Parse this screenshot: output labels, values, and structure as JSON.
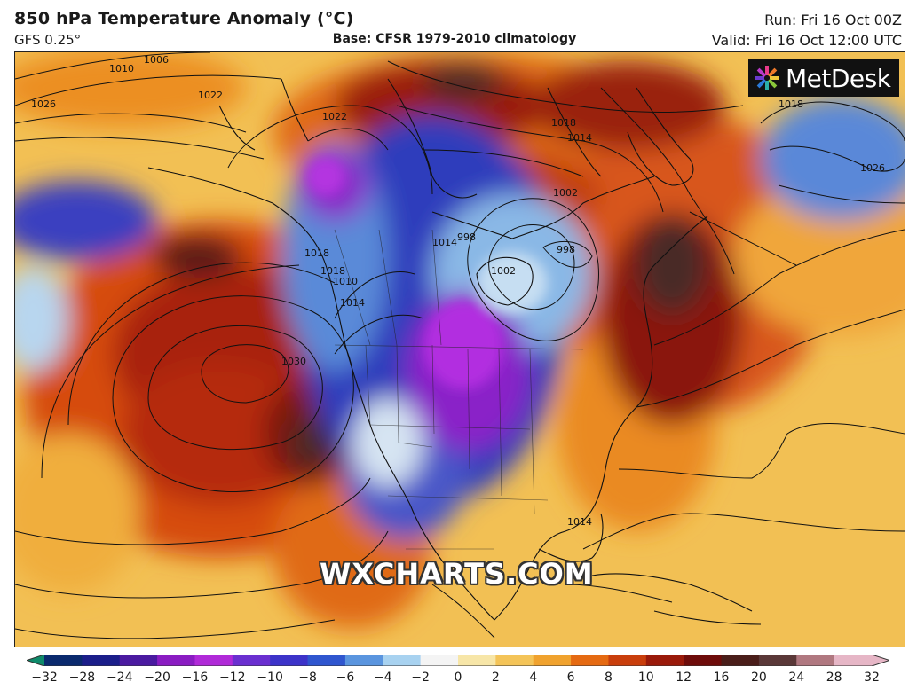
{
  "header": {
    "title": "850 hPa Temperature Anomaly (°C)",
    "model": "GFS 0.25°",
    "base": "Base: CFSR 1979-2010 climatology",
    "run": "Run: Fri 16 Oct 00Z",
    "valid": "Valid: Fri 16 Oct 12:00 UTC"
  },
  "logo": {
    "text": "MetDesk"
  },
  "watermark": {
    "text": "WXCHARTS.COM"
  },
  "colorbar": {
    "ticks": [
      "−32",
      "−28",
      "−24",
      "−20",
      "−16",
      "−12",
      "−10",
      "−8",
      "−6",
      "−4",
      "−2",
      "0",
      "2",
      "4",
      "6",
      "8",
      "10",
      "12",
      "16",
      "20",
      "24",
      "28",
      "32"
    ],
    "colors": [
      "#0f8a6a",
      "#0a2a6e",
      "#1b1e8a",
      "#4a1aa0",
      "#8a1cc2",
      "#b02ad8",
      "#6a2fd0",
      "#3c33c9",
      "#2f56cf",
      "#5a95df",
      "#a8d2f0",
      "#f4f4f4",
      "#f7e6a8",
      "#f4c458",
      "#f0a22e",
      "#e56a12",
      "#c93e0c",
      "#9a1a0a",
      "#6e0c0a",
      "#4a1e1a",
      "#5a3838",
      "#b07880",
      "#e6b6c6"
    ]
  },
  "isobars": {
    "labels": [
      "1006",
      "1010",
      "1026",
      "1022",
      "1018",
      "1014",
      "1018",
      "1022",
      "1026",
      "1014",
      "1018",
      "1014",
      "1018",
      "1030",
      "998",
      "1014",
      "1002",
      "1010",
      "1002",
      "998",
      "1014",
      "1010"
    ]
  }
}
